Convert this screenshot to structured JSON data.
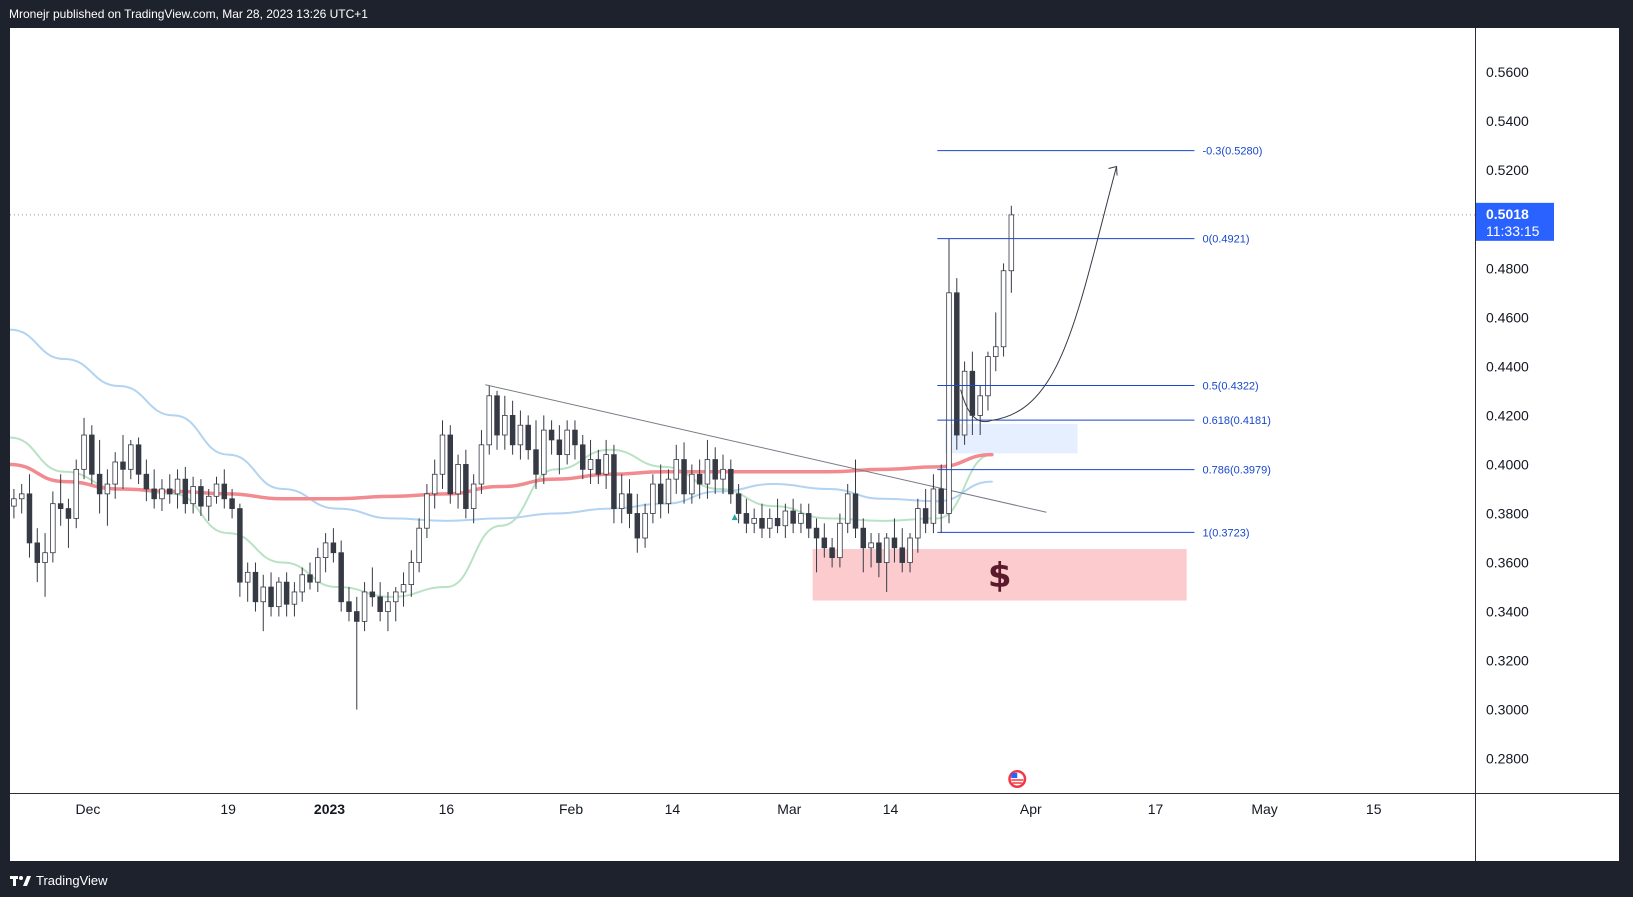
{
  "header": {
    "text": "Mronejr published on TradingView.com, Mar 28, 2023 13:26 UTC+1"
  },
  "footer": {
    "brand": "TradingView"
  },
  "colors": {
    "bull_candle": "#ffffff",
    "bear_candle": "#363a45",
    "ema_fast": "#b9e2c4",
    "ema_mid": "#b2d3f1",
    "ema_slow": "#f28b8f",
    "fib_line": "#1848cc",
    "demand_zone": "#fccbcd",
    "fvg_zone": "#e5efff",
    "price_label_bg": "#2962ff",
    "trendline": "#787b86"
  },
  "chart_data": {
    "type": "candlestick",
    "symbol_timeframe": "1D",
    "x_ticks": [
      "Dec",
      "19",
      "2023",
      "16",
      "Feb",
      "14",
      "Mar",
      "14",
      "Apr",
      "17",
      "May",
      "15"
    ],
    "y_ticks": [
      "0.5600",
      "0.5400",
      "0.5200",
      "0.5000",
      "0.4800",
      "0.4600",
      "0.4400",
      "0.4200",
      "0.4000",
      "0.3800",
      "0.3600",
      "0.3400",
      "0.3200",
      "0.3000",
      "0.2800"
    ],
    "ylim": [
      0.266,
      0.578
    ],
    "date_range": [
      "2022-11-21",
      "2023-05-28"
    ],
    "last_price": {
      "value": "0.5018",
      "countdown": "11:33:15"
    },
    "fib_levels": [
      {
        "label": "-0.3(0.5280)",
        "value": 0.528
      },
      {
        "label": "0(0.4921)",
        "value": 0.4921
      },
      {
        "label": "0.5(0.4322)",
        "value": 0.4322
      },
      {
        "label": "0.618(0.4181)",
        "value": 0.4181
      },
      {
        "label": "0.786(0.3979)",
        "value": 0.3979
      },
      {
        "label": "1(0.3723)",
        "value": 0.3723
      }
    ],
    "fib_range": {
      "from": "2023-03-20",
      "to": "2023-04-22"
    },
    "demand_zone": {
      "from": "2023-03-04",
      "to": "2023-04-21",
      "high": 0.3655,
      "low": 0.3445,
      "icon": "dollar-icon",
      "label": "$"
    },
    "fvg_zone": {
      "from": "2023-03-21",
      "to": "2023-04-07",
      "high": 0.4165,
      "low": 0.4045
    },
    "trendline": {
      "from": [
        "2023-01-21",
        0.4325
      ],
      "to": [
        "2023-04-03",
        0.3805
      ]
    },
    "projection_curve": {
      "from": [
        "2023-03-23",
        0.4305
      ],
      "via": [
        "2023-03-27",
        0.418
      ],
      "to": [
        "2023-04-12",
        0.5215
      ]
    },
    "moving_averages": [
      {
        "name": "ema_fast",
        "points": [
          [
            "2022-11-21",
            0.411
          ],
          [
            "2022-11-28",
            0.397
          ],
          [
            "2022-12-05",
            0.39
          ],
          [
            "2022-12-12",
            0.388
          ],
          [
            "2022-12-19",
            0.372
          ],
          [
            "2022-12-26",
            0.36
          ],
          [
            "2023-01-02",
            0.35
          ],
          [
            "2023-01-09",
            0.346
          ],
          [
            "2023-01-16",
            0.35
          ],
          [
            "2023-01-23",
            0.375
          ],
          [
            "2023-01-30",
            0.398
          ],
          [
            "2023-02-06",
            0.406
          ],
          [
            "2023-02-13",
            0.399
          ],
          [
            "2023-02-20",
            0.39
          ],
          [
            "2023-02-27",
            0.383
          ],
          [
            "2023-03-06",
            0.378
          ],
          [
            "2023-03-13",
            0.377
          ],
          [
            "2023-03-20",
            0.378
          ],
          [
            "2023-03-27",
            0.404
          ]
        ]
      },
      {
        "name": "ema_mid",
        "points": [
          [
            "2022-11-21",
            0.455
          ],
          [
            "2022-11-28",
            0.443
          ],
          [
            "2022-12-05",
            0.432
          ],
          [
            "2022-12-12",
            0.42
          ],
          [
            "2022-12-19",
            0.404
          ],
          [
            "2022-12-26",
            0.39
          ],
          [
            "2023-01-02",
            0.382
          ],
          [
            "2023-01-09",
            0.378
          ],
          [
            "2023-01-16",
            0.377
          ],
          [
            "2023-01-23",
            0.378
          ],
          [
            "2023-01-30",
            0.38
          ],
          [
            "2023-02-06",
            0.382
          ],
          [
            "2023-02-13",
            0.384
          ],
          [
            "2023-02-20",
            0.389
          ],
          [
            "2023-02-27",
            0.392
          ],
          [
            "2023-03-06",
            0.39
          ],
          [
            "2023-03-13",
            0.386
          ],
          [
            "2023-03-20",
            0.385
          ],
          [
            "2023-03-27",
            0.393
          ]
        ]
      },
      {
        "name": "ema_slow",
        "points": [
          [
            "2022-11-21",
            0.4
          ],
          [
            "2022-11-28",
            0.393
          ],
          [
            "2022-12-05",
            0.39
          ],
          [
            "2022-12-12",
            0.389
          ],
          [
            "2022-12-19",
            0.388
          ],
          [
            "2022-12-26",
            0.386
          ],
          [
            "2023-01-02",
            0.386
          ],
          [
            "2023-01-09",
            0.387
          ],
          [
            "2023-01-16",
            0.388
          ],
          [
            "2023-01-23",
            0.391
          ],
          [
            "2023-01-30",
            0.394
          ],
          [
            "2023-02-06",
            0.396
          ],
          [
            "2023-02-13",
            0.397
          ],
          [
            "2023-02-20",
            0.397
          ],
          [
            "2023-02-27",
            0.397
          ],
          [
            "2023-03-06",
            0.397
          ],
          [
            "2023-03-13",
            0.398
          ],
          [
            "2023-03-20",
            0.399
          ],
          [
            "2023-03-27",
            0.404
          ]
        ]
      }
    ],
    "candles": [
      [
        "2022-11-21",
        0.383,
        0.39,
        0.378,
        0.386
      ],
      [
        "2022-11-22",
        0.386,
        0.392,
        0.38,
        0.388
      ],
      [
        "2022-11-23",
        0.388,
        0.396,
        0.362,
        0.368
      ],
      [
        "2022-11-24",
        0.368,
        0.374,
        0.352,
        0.36
      ],
      [
        "2022-11-25",
        0.36,
        0.372,
        0.346,
        0.364
      ],
      [
        "2022-11-26",
        0.364,
        0.389,
        0.36,
        0.384
      ],
      [
        "2022-11-27",
        0.384,
        0.396,
        0.375,
        0.382
      ],
      [
        "2022-11-28",
        0.382,
        0.386,
        0.366,
        0.378
      ],
      [
        "2022-11-29",
        0.378,
        0.402,
        0.374,
        0.398
      ],
      [
        "2022-11-30",
        0.398,
        0.419,
        0.394,
        0.412
      ],
      [
        "2022-12-01",
        0.412,
        0.416,
        0.392,
        0.396
      ],
      [
        "2022-12-02",
        0.396,
        0.41,
        0.38,
        0.388
      ],
      [
        "2022-12-03",
        0.388,
        0.398,
        0.375,
        0.392
      ],
      [
        "2022-12-04",
        0.392,
        0.405,
        0.386,
        0.401
      ],
      [
        "2022-12-05",
        0.401,
        0.412,
        0.39,
        0.398
      ],
      [
        "2022-12-06",
        0.398,
        0.41,
        0.394,
        0.408
      ],
      [
        "2022-12-07",
        0.408,
        0.411,
        0.392,
        0.396
      ],
      [
        "2022-12-08",
        0.396,
        0.402,
        0.385,
        0.39
      ],
      [
        "2022-12-09",
        0.39,
        0.398,
        0.382,
        0.386
      ],
      [
        "2022-12-10",
        0.386,
        0.394,
        0.381,
        0.39
      ],
      [
        "2022-12-11",
        0.39,
        0.396,
        0.384,
        0.388
      ],
      [
        "2022-12-12",
        0.388,
        0.398,
        0.382,
        0.394
      ],
      [
        "2022-12-13",
        0.394,
        0.399,
        0.38,
        0.384
      ],
      [
        "2022-12-14",
        0.384,
        0.395,
        0.38,
        0.391
      ],
      [
        "2022-12-15",
        0.391,
        0.394,
        0.379,
        0.383
      ],
      [
        "2022-12-16",
        0.383,
        0.39,
        0.377,
        0.387
      ],
      [
        "2022-12-17",
        0.387,
        0.395,
        0.384,
        0.392
      ],
      [
        "2022-12-18",
        0.392,
        0.398,
        0.382,
        0.386
      ],
      [
        "2022-12-19",
        0.386,
        0.39,
        0.378,
        0.382
      ],
      [
        "2022-12-20",
        0.382,
        0.384,
        0.346,
        0.352
      ],
      [
        "2022-12-21",
        0.352,
        0.36,
        0.344,
        0.356
      ],
      [
        "2022-12-22",
        0.356,
        0.36,
        0.34,
        0.344
      ],
      [
        "2022-12-23",
        0.344,
        0.355,
        0.332,
        0.35
      ],
      [
        "2022-12-24",
        0.35,
        0.356,
        0.338,
        0.342
      ],
      [
        "2022-12-25",
        0.342,
        0.354,
        0.338,
        0.352
      ],
      [
        "2022-12-26",
        0.352,
        0.356,
        0.338,
        0.343
      ],
      [
        "2022-12-27",
        0.343,
        0.352,
        0.338,
        0.348
      ],
      [
        "2022-12-28",
        0.348,
        0.358,
        0.344,
        0.355
      ],
      [
        "2022-12-29",
        0.355,
        0.36,
        0.349,
        0.352
      ],
      [
        "2022-12-30",
        0.352,
        0.366,
        0.348,
        0.362
      ],
      [
        "2022-12-31",
        0.362,
        0.372,
        0.356,
        0.368
      ],
      [
        "2023-01-01",
        0.368,
        0.374,
        0.36,
        0.364
      ],
      [
        "2023-01-02",
        0.364,
        0.369,
        0.34,
        0.344
      ],
      [
        "2023-01-03",
        0.344,
        0.35,
        0.336,
        0.34
      ],
      [
        "2023-01-04",
        0.34,
        0.346,
        0.3,
        0.336
      ],
      [
        "2023-01-05",
        0.336,
        0.352,
        0.332,
        0.348
      ],
      [
        "2023-01-06",
        0.348,
        0.358,
        0.342,
        0.346
      ],
      [
        "2023-01-07",
        0.346,
        0.352,
        0.336,
        0.34
      ],
      [
        "2023-01-08",
        0.34,
        0.348,
        0.332,
        0.344
      ],
      [
        "2023-01-09",
        0.344,
        0.35,
        0.336,
        0.348
      ],
      [
        "2023-01-10",
        0.348,
        0.356,
        0.342,
        0.351
      ],
      [
        "2023-01-11",
        0.351,
        0.365,
        0.346,
        0.36
      ],
      [
        "2023-01-12",
        0.36,
        0.378,
        0.356,
        0.374
      ],
      [
        "2023-01-13",
        0.374,
        0.392,
        0.37,
        0.388
      ],
      [
        "2023-01-14",
        0.388,
        0.402,
        0.382,
        0.396
      ],
      [
        "2023-01-15",
        0.396,
        0.418,
        0.39,
        0.412
      ],
      [
        "2023-01-16",
        0.412,
        0.416,
        0.384,
        0.388
      ],
      [
        "2023-01-17",
        0.388,
        0.404,
        0.382,
        0.4
      ],
      [
        "2023-01-18",
        0.4,
        0.406,
        0.378,
        0.382
      ],
      [
        "2023-01-19",
        0.382,
        0.396,
        0.376,
        0.392
      ],
      [
        "2023-01-20",
        0.392,
        0.414,
        0.388,
        0.408
      ],
      [
        "2023-01-21",
        0.408,
        0.432,
        0.404,
        0.428
      ],
      [
        "2023-01-22",
        0.428,
        0.43,
        0.406,
        0.412
      ],
      [
        "2023-01-23",
        0.412,
        0.428,
        0.406,
        0.42
      ],
      [
        "2023-01-24",
        0.42,
        0.426,
        0.404,
        0.408
      ],
      [
        "2023-01-25",
        0.408,
        0.422,
        0.402,
        0.416
      ],
      [
        "2023-01-26",
        0.416,
        0.42,
        0.402,
        0.406
      ],
      [
        "2023-01-27",
        0.406,
        0.418,
        0.39,
        0.396
      ],
      [
        "2023-01-28",
        0.396,
        0.42,
        0.392,
        0.414
      ],
      [
        "2023-01-29",
        0.414,
        0.418,
        0.404,
        0.41
      ],
      [
        "2023-01-30",
        0.41,
        0.416,
        0.396,
        0.404
      ],
      [
        "2023-01-31",
        0.404,
        0.418,
        0.4,
        0.414
      ],
      [
        "2023-02-01",
        0.414,
        0.418,
        0.402,
        0.408
      ],
      [
        "2023-02-02",
        0.408,
        0.412,
        0.394,
        0.398
      ],
      [
        "2023-02-03",
        0.398,
        0.41,
        0.392,
        0.402
      ],
      [
        "2023-02-04",
        0.402,
        0.406,
        0.392,
        0.396
      ],
      [
        "2023-02-05",
        0.396,
        0.41,
        0.39,
        0.404
      ],
      [
        "2023-02-06",
        0.404,
        0.408,
        0.376,
        0.382
      ],
      [
        "2023-02-07",
        0.382,
        0.396,
        0.376,
        0.388
      ],
      [
        "2023-02-08",
        0.388,
        0.394,
        0.374,
        0.38
      ],
      [
        "2023-02-09",
        0.38,
        0.388,
        0.364,
        0.37
      ],
      [
        "2023-02-10",
        0.37,
        0.384,
        0.366,
        0.38
      ],
      [
        "2023-02-11",
        0.38,
        0.396,
        0.376,
        0.392
      ],
      [
        "2023-02-12",
        0.392,
        0.4,
        0.378,
        0.384
      ],
      [
        "2023-02-13",
        0.384,
        0.398,
        0.38,
        0.394
      ],
      [
        "2023-02-14",
        0.394,
        0.408,
        0.388,
        0.402
      ],
      [
        "2023-02-15",
        0.402,
        0.409,
        0.384,
        0.388
      ],
      [
        "2023-02-16",
        0.388,
        0.4,
        0.384,
        0.396
      ],
      [
        "2023-02-17",
        0.396,
        0.402,
        0.386,
        0.392
      ],
      [
        "2023-02-18",
        0.392,
        0.41,
        0.386,
        0.402
      ],
      [
        "2023-02-19",
        0.402,
        0.407,
        0.388,
        0.394
      ],
      [
        "2023-02-20",
        0.394,
        0.404,
        0.388,
        0.398
      ],
      [
        "2023-02-21",
        0.398,
        0.402,
        0.384,
        0.388
      ],
      [
        "2023-02-22",
        0.388,
        0.392,
        0.376,
        0.38
      ],
      [
        "2023-02-23",
        0.38,
        0.386,
        0.372,
        0.376
      ],
      [
        "2023-02-24",
        0.376,
        0.382,
        0.372,
        0.378
      ],
      [
        "2023-02-25",
        0.378,
        0.384,
        0.37,
        0.374
      ],
      [
        "2023-02-26",
        0.374,
        0.382,
        0.37,
        0.378
      ],
      [
        "2023-02-27",
        0.378,
        0.386,
        0.372,
        0.375
      ],
      [
        "2023-02-28",
        0.375,
        0.384,
        0.37,
        0.381
      ],
      [
        "2023-03-01",
        0.381,
        0.386,
        0.372,
        0.376
      ],
      [
        "2023-03-02",
        0.376,
        0.384,
        0.372,
        0.38
      ],
      [
        "2023-03-03",
        0.38,
        0.384,
        0.37,
        0.374
      ],
      [
        "2023-03-04",
        0.374,
        0.378,
        0.356,
        0.37
      ],
      [
        "2023-03-05",
        0.37,
        0.376,
        0.362,
        0.366
      ],
      [
        "2023-03-06",
        0.366,
        0.37,
        0.358,
        0.362
      ],
      [
        "2023-03-07",
        0.362,
        0.38,
        0.358,
        0.376
      ],
      [
        "2023-03-08",
        0.376,
        0.392,
        0.372,
        0.388
      ],
      [
        "2023-03-09",
        0.388,
        0.402,
        0.37,
        0.374
      ],
      [
        "2023-03-10",
        0.374,
        0.378,
        0.356,
        0.366
      ],
      [
        "2023-03-11",
        0.366,
        0.372,
        0.358,
        0.368
      ],
      [
        "2023-03-12",
        0.368,
        0.372,
        0.354,
        0.36
      ],
      [
        "2023-03-13",
        0.36,
        0.372,
        0.348,
        0.37
      ],
      [
        "2023-03-14",
        0.37,
        0.378,
        0.36,
        0.366
      ],
      [
        "2023-03-15",
        0.366,
        0.374,
        0.356,
        0.36
      ],
      [
        "2023-03-16",
        0.36,
        0.372,
        0.356,
        0.37
      ],
      [
        "2023-03-17",
        0.37,
        0.386,
        0.364,
        0.382
      ],
      [
        "2023-03-18",
        0.382,
        0.39,
        0.372,
        0.376
      ],
      [
        "2023-03-19",
        0.376,
        0.396,
        0.372,
        0.39
      ],
      [
        "2023-03-20",
        0.39,
        0.4,
        0.372,
        0.38
      ],
      [
        "2023-03-21",
        0.38,
        0.492,
        0.376,
        0.47
      ],
      [
        "2023-03-22",
        0.47,
        0.476,
        0.406,
        0.412
      ],
      [
        "2023-03-23",
        0.412,
        0.442,
        0.408,
        0.438
      ],
      [
        "2023-03-24",
        0.438,
        0.446,
        0.412,
        0.42
      ],
      [
        "2023-03-25",
        0.42,
        0.432,
        0.412,
        0.428
      ],
      [
        "2023-03-26",
        0.428,
        0.446,
        0.422,
        0.444
      ],
      [
        "2023-03-27",
        0.444,
        0.462,
        0.438,
        0.448
      ],
      [
        "2023-03-28",
        0.448,
        0.482,
        0.444,
        0.479
      ],
      [
        "2023-03-29",
        0.479,
        0.5055,
        0.47,
        0.5018
      ]
    ]
  }
}
